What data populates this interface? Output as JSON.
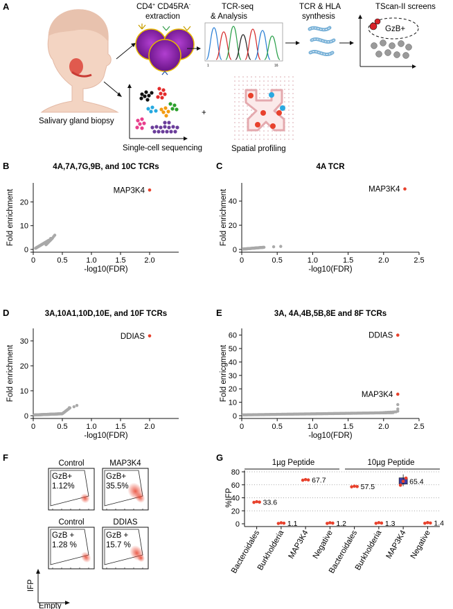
{
  "panelA": {
    "letter": "A",
    "salivary_label": "Salivary gland biopsy",
    "extraction_label_1": "CD4",
    "extraction_sup_1": "+",
    "extraction_label_2": " CD45RA",
    "extraction_sup_2": "-",
    "extraction_label_3": "extraction",
    "tcrseq_label_1": "TCR-seq",
    "tcrseq_label_2": "& Analysis",
    "synthesis_label_1": "TCR & HLA",
    "synthesis_label_2": "synthesis",
    "tscan_label": "TScan-II screens",
    "gzb_label": "GzB+",
    "singlecell_label": "Single-cell sequencing",
    "plus_sign": "+",
    "spatial_label": "Spatial profiling",
    "trace_axis_start": "1",
    "trace_axis_end": "16"
  },
  "scatter_panels": [
    {
      "letter": "B",
      "title": "4A,7A,7G,9B, and 10C  TCRs",
      "xlabel": "-log10(FDR)",
      "ylabel": "Fold enrichment",
      "xticks": [
        "0",
        "0.5",
        "1.0",
        "1.5",
        "2.0"
      ],
      "yticks": [
        "0",
        "10",
        "20"
      ],
      "highlights": [
        {
          "label": "MAP3K4",
          "x": 2.0,
          "y": 25
        }
      ]
    },
    {
      "letter": "C",
      "title": "4A TCR",
      "xlabel": "-log10(FDR)",
      "ylabel": "Fold enrichment",
      "xticks": [
        "0",
        "0.5",
        "1.0",
        "1.5",
        "2.0",
        "2.5"
      ],
      "yticks": [
        "0",
        "20",
        "40"
      ],
      "highlights": [
        {
          "label": "MAP3K4",
          "x": 2.3,
          "y": 50
        }
      ]
    },
    {
      "letter": "D",
      "title": "3A,10A1,10D,10E, and 10F TCRs",
      "xlabel": "-log10(FDR)",
      "ylabel": "Fold enrichment",
      "xticks": [
        "0",
        "0.5",
        "1.0",
        "1.5",
        "2.0"
      ],
      "yticks": [
        "0",
        "10",
        "20",
        "30"
      ],
      "highlights": [
        {
          "label": "DDIAS",
          "x": 2.0,
          "y": 32
        }
      ]
    },
    {
      "letter": "E",
      "title": "3A, 4A,4B,5B,8E and 8F TCRs",
      "xlabel": "-log10(FDR)",
      "ylabel": "Fold enricgment",
      "xticks": [
        "0",
        "0.5",
        "1.0",
        "1.5",
        "2.0",
        "2.5"
      ],
      "yticks": [
        "0",
        "10",
        "20",
        "30",
        "40",
        "50",
        "60"
      ],
      "highlights": [
        {
          "label": "DDIAS",
          "x": 2.2,
          "y": 60
        },
        {
          "label": "MAP3K4",
          "x": 2.2,
          "y": 16
        }
      ]
    }
  ],
  "panelF": {
    "letter": "F",
    "plots": [
      {
        "title": "Control",
        "gate": "GzB+",
        "value": "1.12%"
      },
      {
        "title": "MAP3K4",
        "gate": "GzB+",
        "value": "35.5%"
      },
      {
        "title": "Control",
        "gate": "GzB +",
        "value": "1.28 %"
      },
      {
        "title": "DDIAS",
        "gate": "GzB +",
        "value": "15.7 %"
      }
    ],
    "y_axis_label": "IFP",
    "x_axis_label": "Empty"
  },
  "chart_data": {
    "type": "scatter",
    "letter": "G",
    "ylabel": "%IFP",
    "ylim": [
      0,
      80
    ],
    "yticks": [
      "0",
      "20",
      "40",
      "60",
      "80"
    ],
    "groups": [
      "1µg Peptide",
      "10µg Peptide"
    ],
    "categories": [
      "Bacteroidales",
      "Burkholderia",
      "MAP3K4",
      "Negative",
      "Bacteroidales",
      "Burkholderia",
      "MAP3K4",
      "Negative"
    ],
    "values": [
      33.6,
      1.1,
      67.7,
      1.2,
      57.5,
      1.3,
      65.4,
      1.4
    ],
    "value_labels": [
      "33.6",
      "1.1",
      "67.7",
      "1.2",
      "57.5",
      "1.3",
      "65.4",
      "1.4"
    ],
    "grid": true
  },
  "colors": {
    "highlight": "#e8412c",
    "gray": "#a9a9a9",
    "purple": "#8e27b0",
    "gold": "#e6b800"
  }
}
